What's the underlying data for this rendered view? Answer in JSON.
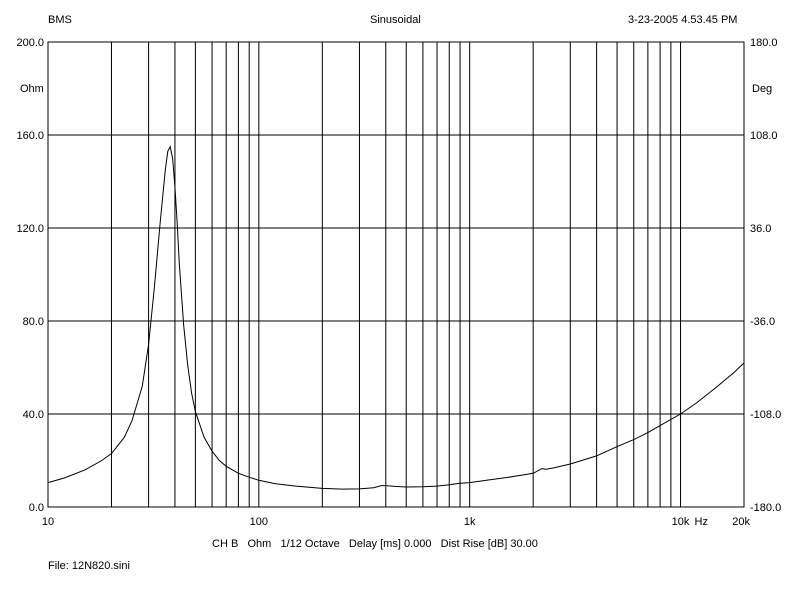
{
  "header": {
    "left": "BMS",
    "center": "Sinusoidal",
    "right": "3-23-2005 4.53.45 PM"
  },
  "footer": {
    "settings": "CH B   Ohm   1/12 Octave   Delay [ms] 0.000   Dist Rise [dB] 30.00",
    "file": "File: 12N820.sini"
  },
  "chart_data": {
    "type": "line",
    "title": "",
    "xlabel": "",
    "x_unit": "Hz",
    "x_scale": "log",
    "xlim": [
      10,
      20000
    ],
    "x_tick_labels": [
      {
        "value": 10,
        "label": "10"
      },
      {
        "value": 100,
        "label": "100"
      },
      {
        "value": 1000,
        "label": "1k"
      },
      {
        "value": 10000,
        "label": "10k"
      },
      {
        "value": 20000,
        "label": "20k"
      }
    ],
    "y_left": {
      "unit": "Ohm",
      "ylim": [
        0,
        200
      ],
      "ticks": [
        {
          "value": 0,
          "label": "0.0"
        },
        {
          "value": 40,
          "label": "40.0"
        },
        {
          "value": 80,
          "label": "80.0"
        },
        {
          "value": 120,
          "label": "120.0"
        },
        {
          "value": 160,
          "label": "160.0"
        },
        {
          "value": 200,
          "label": "200.0"
        }
      ]
    },
    "y_right": {
      "unit": "Deg",
      "ylim": [
        -180,
        180
      ],
      "ticks": [
        {
          "value": -180,
          "label": "-180.0"
        },
        {
          "value": -108,
          "label": "-108.0"
        },
        {
          "value": -36,
          "label": "-36.0"
        },
        {
          "value": 36,
          "label": "36.0"
        },
        {
          "value": 108,
          "label": "108.0"
        },
        {
          "value": 180,
          "label": "180.0"
        }
      ]
    },
    "grid": true,
    "line_color": "#000000",
    "series": [
      {
        "x": [
          10,
          12,
          15,
          18,
          20,
          23,
          25,
          28,
          30,
          32,
          34,
          36,
          37,
          38,
          39,
          40,
          41,
          42,
          44,
          46,
          48,
          50,
          55,
          60,
          65,
          70,
          80,
          90,
          100,
          120,
          150,
          200,
          250,
          300,
          350,
          380,
          400,
          450,
          500,
          600,
          700,
          800,
          900,
          1000,
          1200,
          1500,
          1800,
          2000,
          2200,
          2300,
          2500,
          3000,
          4000,
          5000,
          6000,
          7000,
          8000,
          10000,
          12000,
          15000,
          18000,
          20000
        ],
        "y": [
          10.5,
          12.5,
          16,
          20,
          23,
          30,
          37,
          52,
          70,
          95,
          122,
          145,
          153,
          155,
          150,
          138,
          122,
          104,
          78,
          61,
          49,
          41,
          30,
          24,
          20,
          17.5,
          14.5,
          12.8,
          11.5,
          10,
          9,
          8,
          7.7,
          7.8,
          8.3,
          9.2,
          9.2,
          8.8,
          8.6,
          8.7,
          9,
          9.6,
          10.2,
          10.5,
          11.5,
          12.7,
          13.8,
          14.5,
          16.5,
          16.2,
          16.8,
          18.5,
          22,
          26,
          29,
          32,
          35,
          40,
          45,
          52,
          58,
          62
        ]
      }
    ]
  }
}
